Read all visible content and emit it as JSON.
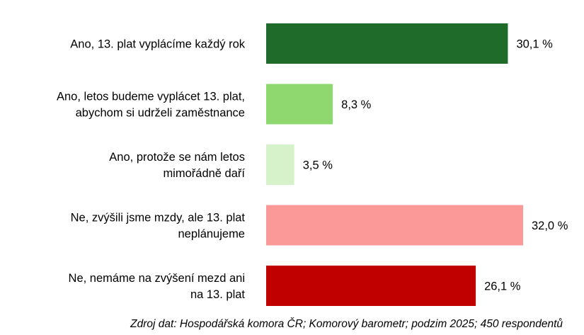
{
  "chart_data": {
    "type": "bar",
    "orientation": "horizontal",
    "title": "",
    "xlabel": "",
    "ylabel": "",
    "xlim": [
      0,
      32.0
    ],
    "grid": false,
    "legend": "none",
    "categories": [
      [
        "Ano, 13. plat vyplácíme každý rok"
      ],
      [
        "Ano, letos budeme vyplácet 13. plat,",
        "abychom si udrželi zaměstnance"
      ],
      [
        "Ano, protože se nám letos",
        "mimořádně daří"
      ],
      [
        "Ne, zvýšili jsme mzdy, ale 13. plat",
        "neplánujeme"
      ],
      [
        "Ne, nemáme na zvýšení mezd ani",
        "na 13. plat"
      ]
    ],
    "values": [
      30.1,
      8.3,
      3.5,
      32.0,
      26.1
    ],
    "value_labels": [
      "30,1 %",
      "8,3 %",
      "3,5 %",
      "32,0 %",
      "26,1 %"
    ],
    "colors": [
      "#1e6b2a",
      "#8fd870",
      "#d5f2cb",
      "#fb9898",
      "#c00000"
    ]
  },
  "source_note": "Zdroj dat: Hospodářská komora ČR; Komorový barometr; podzim 2025; 450 respondentů"
}
